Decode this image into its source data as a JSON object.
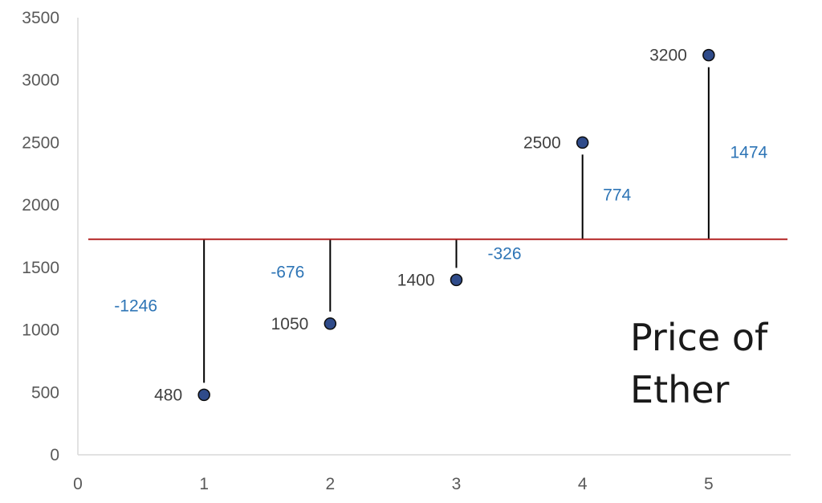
{
  "chart_data": {
    "type": "scatter",
    "title_lines": [
      "Price of",
      "Ether"
    ],
    "xlabel": "",
    "ylabel": "",
    "xlim": [
      0,
      5.65
    ],
    "ylim": [
      0,
      3500
    ],
    "x_ticks": [
      "0",
      "1",
      "2",
      "3",
      "4",
      "5"
    ],
    "y_ticks": [
      "0",
      "500",
      "1000",
      "1500",
      "2000",
      "2500",
      "3000",
      "3500"
    ],
    "points": [
      {
        "x": 1,
        "y": 480,
        "label": "480",
        "deviation": "-1246"
      },
      {
        "x": 2,
        "y": 1050,
        "label": "1050",
        "deviation": "-676"
      },
      {
        "x": 3,
        "y": 1400,
        "label": "1400",
        "deviation": "-326"
      },
      {
        "x": 4,
        "y": 2500,
        "label": "2500",
        "deviation": "774"
      },
      {
        "x": 5,
        "y": 3200,
        "label": "3200",
        "deviation": "1474"
      }
    ],
    "mean_line": 1726,
    "grid": false,
    "legend": "none",
    "colors": {
      "marker_fill": "#2f4b8a",
      "marker_stroke": "#0d0d0d",
      "mean_line": "#b22222",
      "deviation_labels": "#2e75b6"
    }
  }
}
